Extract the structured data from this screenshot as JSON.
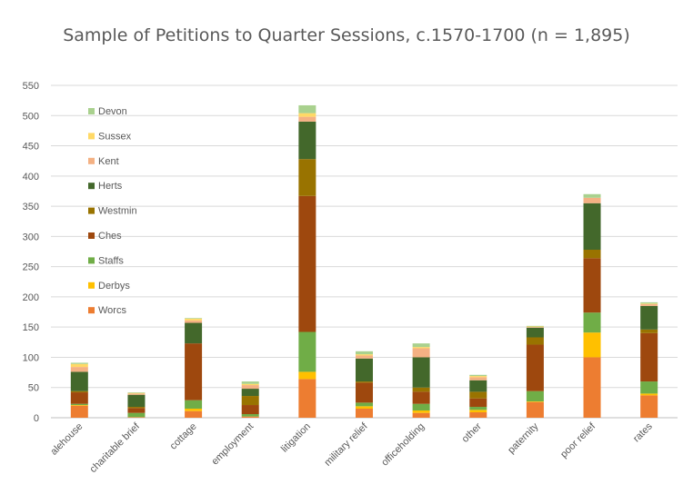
{
  "chart_data": {
    "type": "bar",
    "stacked": true,
    "title": "Sample of Petitions to Quarter Sessions, c.1570-1700 (n = 1,895)",
    "xlabel": "",
    "ylabel": "",
    "ylim": [
      0,
      550
    ],
    "yticks": [
      0,
      50,
      100,
      150,
      200,
      250,
      300,
      350,
      400,
      450,
      500,
      550
    ],
    "grid": true,
    "legend_position": "top-left",
    "categories": [
      "alehouse",
      "charitable brief",
      "cottage",
      "employment",
      "litigation",
      "military relief",
      "officeholding",
      "other",
      "paternity",
      "poor relief",
      "rates"
    ],
    "series": [
      {
        "name": "Worcs",
        "color": "#ED7D31",
        "values": [
          20,
          1,
          11,
          2,
          64,
          15,
          8,
          9,
          26,
          100,
          37
        ]
      },
      {
        "name": "Derbys",
        "color": "#FFC000",
        "values": [
          1,
          0,
          4,
          0,
          12,
          4,
          4,
          4,
          1,
          41,
          3
        ]
      },
      {
        "name": "Staffs",
        "color": "#70AD47",
        "values": [
          2,
          7,
          14,
          4,
          66,
          6,
          11,
          5,
          17,
          33,
          20
        ]
      },
      {
        "name": "Ches",
        "color": "#9E480E",
        "values": [
          19,
          8,
          94,
          15,
          225,
          33,
          20,
          14,
          77,
          90,
          80
        ]
      },
      {
        "name": "Westmin",
        "color": "#997300",
        "values": [
          2,
          2,
          0,
          15,
          61,
          2,
          7,
          11,
          12,
          14,
          6
        ]
      },
      {
        "name": "Herts",
        "color": "#43682B",
        "values": [
          32,
          20,
          34,
          12,
          62,
          38,
          50,
          19,
          16,
          77,
          39
        ]
      },
      {
        "name": "Kent",
        "color": "#F4B183",
        "values": [
          8,
          2,
          4,
          6,
          8,
          5,
          15,
          5,
          1,
          9,
          3
        ]
      },
      {
        "name": "Sussex",
        "color": "#FFD966",
        "values": [
          5,
          1,
          3,
          2,
          6,
          2,
          2,
          2,
          1,
          0,
          1
        ]
      },
      {
        "name": "Devon",
        "color": "#A9D18E",
        "values": [
          2,
          1,
          1,
          4,
          13,
          5,
          6,
          2,
          1,
          6,
          2
        ]
      }
    ]
  }
}
